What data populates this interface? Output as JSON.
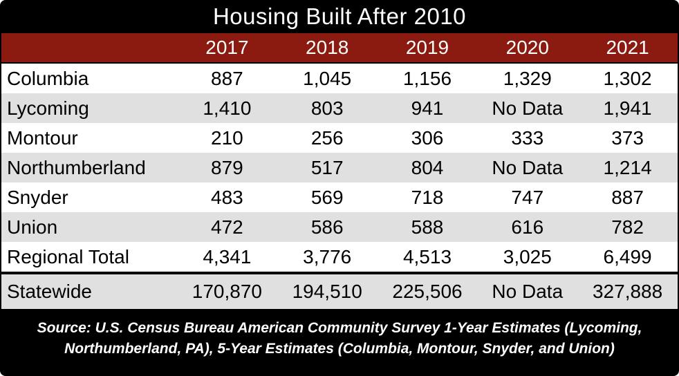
{
  "title": "Housing Built After 2010",
  "chart_data": {
    "type": "table",
    "title": "Housing Built After 2010",
    "columns": [
      "2017",
      "2018",
      "2019",
      "2020",
      "2021"
    ],
    "rows": [
      {
        "label": "Columbia",
        "values": [
          "887",
          "1,045",
          "1,156",
          "1,329",
          "1,302"
        ]
      },
      {
        "label": "Lycoming",
        "values": [
          "1,410",
          "803",
          "941",
          "No Data",
          "1,941"
        ]
      },
      {
        "label": "Montour",
        "values": [
          "210",
          "256",
          "306",
          "333",
          "373"
        ]
      },
      {
        "label": "Northumberland",
        "values": [
          "879",
          "517",
          "804",
          "No Data",
          "1,214"
        ]
      },
      {
        "label": "Snyder",
        "values": [
          "483",
          "569",
          "718",
          "747",
          "887"
        ]
      },
      {
        "label": "Union",
        "values": [
          "472",
          "586",
          "588",
          "616",
          "782"
        ]
      },
      {
        "label": "Regional Total",
        "values": [
          "4,341",
          "3,776",
          "4,513",
          "3,025",
          "6,499"
        ]
      }
    ],
    "statewide_row": {
      "label": "Statewide",
      "values": [
        "170,870",
        "194,510",
        "225,506",
        "No Data",
        "327,888"
      ]
    }
  },
  "source": {
    "line1": "Source: U.S. Census Bureau American Community Survey 1-Year Estimates (Lycoming,",
    "line2": "Northumberland, PA), 5-Year Estimates (Columbia, Montour, Snyder, and Union)"
  },
  "colors": {
    "frame_bg": "#000000",
    "header_bg": "#8B1A11",
    "header_text": "#FFFFFF",
    "row_bg": "#FFFFFF",
    "row_alt_bg": "#E0E0E0",
    "body_text": "#000000",
    "title_text": "#FFFFFF",
    "source_text": "#FFFFFF"
  }
}
